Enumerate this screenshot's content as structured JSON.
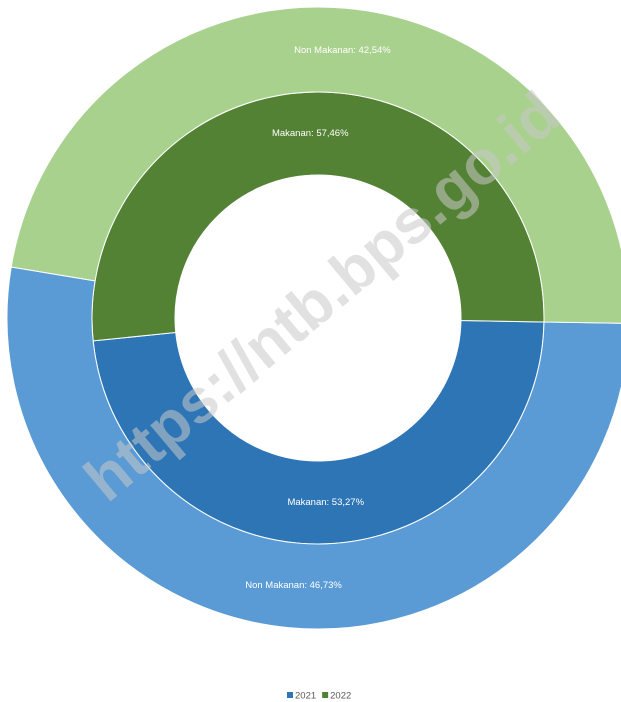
{
  "chart_data": {
    "type": "doughnut",
    "categories": [
      "2021",
      "2022"
    ],
    "category_colors": [
      "#2e75b6",
      "#548235"
    ],
    "series": [
      {
        "values": [
          53.27,
          57.46
        ],
        "value_labels": [
          "Makanan: 53,27%",
          "Makanan: 57,46%"
        ],
        "colors": [
          "#2e75b6",
          "#548235"
        ]
      },
      {
        "values": [
          46.73,
          42.54
        ],
        "value_labels": [
          "Non Makanan: 46,73%",
          "Non Makanan: 42,54%"
        ],
        "colors": [
          "#5b9bd5",
          "#a9d18e"
        ]
      }
    ],
    "watermark": "https://ntb.bps.go.id",
    "legend": "bottom"
  }
}
